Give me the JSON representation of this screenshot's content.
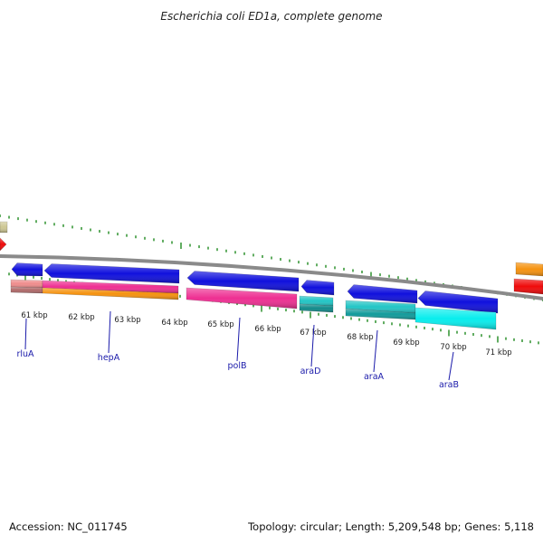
{
  "title": "Escherichia coli ED1a, complete genome",
  "footer": {
    "accession": "Accession: NC_011745",
    "summary": "Topology: circular; Length: 5,209,548 bp; Genes: 5,118"
  },
  "colors": {
    "backbone": "#8a8a8a",
    "tick": "#1e8a1e",
    "blue": "#1010dd",
    "pink": "#ee2f92",
    "salmon": "#ef8c8c",
    "orange": "#f5920f",
    "teal": "#22c5c5",
    "cyan": "#08eded",
    "red": "#ef0a0a",
    "khaki": "#cdc794",
    "label": "#1a1aaa"
  },
  "kbp_labels": [
    "61 kbp",
    "62 kbp",
    "63 kbp",
    "64 kbp",
    "65 kbp",
    "66 kbp",
    "67 kbp",
    "68 kbp",
    "69 kbp",
    "70 kbp",
    "71 kbp"
  ],
  "genes": [
    "rluA",
    "hepA",
    "polB",
    "araD",
    "araA",
    "araB"
  ]
}
